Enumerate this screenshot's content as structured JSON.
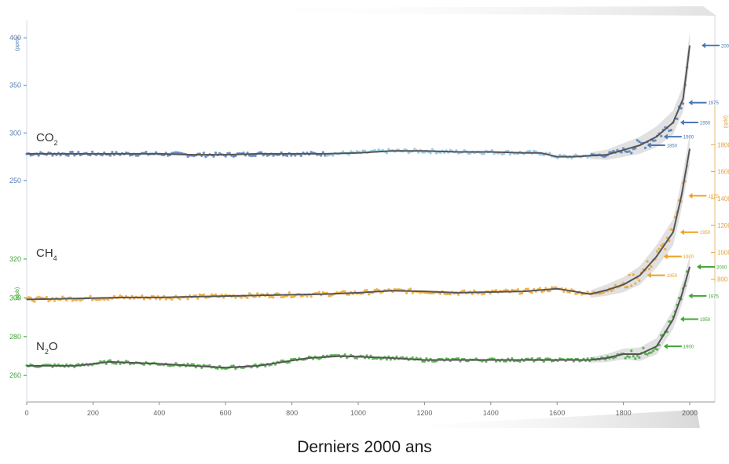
{
  "caption": "Derniers 2000 ans",
  "chart_data": {
    "type": "line",
    "title": "",
    "xlabel": "",
    "xlim": [
      0,
      2000
    ],
    "xticks": [
      "0",
      "200",
      "400",
      "600",
      "800",
      "1000",
      "1200",
      "1400",
      "1600",
      "1800",
      "2000"
    ],
    "grid": false,
    "colors": {
      "co2": "#4a78b8",
      "co2_light": "#86c2e6",
      "ch4": "#f0a020",
      "n2o": "#3fa535",
      "fit": "#555555",
      "axis_left": "#5b7fb0",
      "axis_right": "#e8a23a"
    },
    "series": [
      {
        "name": "CO",
        "subscript": "2",
        "axis_label": "(ppm)",
        "ticks": [
          "250",
          "300",
          "350",
          "400"
        ],
        "ylim": [
          235,
          415
        ],
        "x": [
          0,
          100,
          200,
          300,
          400,
          500,
          600,
          700,
          800,
          900,
          1000,
          1100,
          1200,
          1300,
          1400,
          1500,
          1550,
          1600,
          1650,
          1700,
          1750,
          1800,
          1850,
          1900,
          1950,
          1980,
          2000
        ],
        "values": [
          278,
          278,
          278,
          278,
          278,
          277,
          277,
          278,
          278,
          278,
          279,
          281,
          281,
          280,
          280,
          279,
          279,
          275,
          275,
          276,
          277,
          282,
          287,
          296,
          311,
          336,
          392
        ],
        "annotations": [
          "2000",
          "1975",
          "1950",
          "1900",
          "1850"
        ]
      },
      {
        "name": "CH",
        "subscript": "4",
        "axis_label": "(ppb)",
        "ticks": [
          "800",
          "1000",
          "1200",
          "1400",
          "1600",
          "1800"
        ],
        "ylim": [
          600,
          2000
        ],
        "x": [
          0,
          100,
          200,
          300,
          400,
          500,
          600,
          700,
          800,
          900,
          1000,
          1100,
          1200,
          1300,
          1400,
          1500,
          1600,
          1700,
          1750,
          1800,
          1850,
          1900,
          1950,
          1975,
          2000
        ],
        "values": [
          650,
          655,
          660,
          665,
          665,
          670,
          675,
          680,
          685,
          690,
          700,
          715,
          710,
          700,
          705,
          710,
          730,
          690,
          720,
          760,
          830,
          970,
          1150,
          1420,
          1770
        ],
        "annotations": [
          "1975",
          "1950",
          "1900",
          "1850"
        ]
      },
      {
        "name": "N",
        "subscript": "2",
        "name_suffix": "O",
        "axis_label": "(ppb)",
        "ticks": [
          "260",
          "280",
          "300",
          "320"
        ],
        "ylim": [
          252,
          322
        ],
        "x": [
          0,
          150,
          250,
          400,
          500,
          600,
          700,
          850,
          950,
          1100,
          1200,
          1400,
          1500,
          1600,
          1700,
          1750,
          1800,
          1850,
          1900,
          1950,
          1975,
          2000
        ],
        "values": [
          265,
          265,
          267,
          266,
          265,
          264,
          265,
          269,
          270,
          269,
          268,
          268,
          268,
          268,
          268,
          269,
          271,
          271,
          275,
          289,
          301,
          316
        ],
        "annotations": [
          "2000",
          "1975",
          "1950",
          "1900"
        ]
      }
    ]
  }
}
